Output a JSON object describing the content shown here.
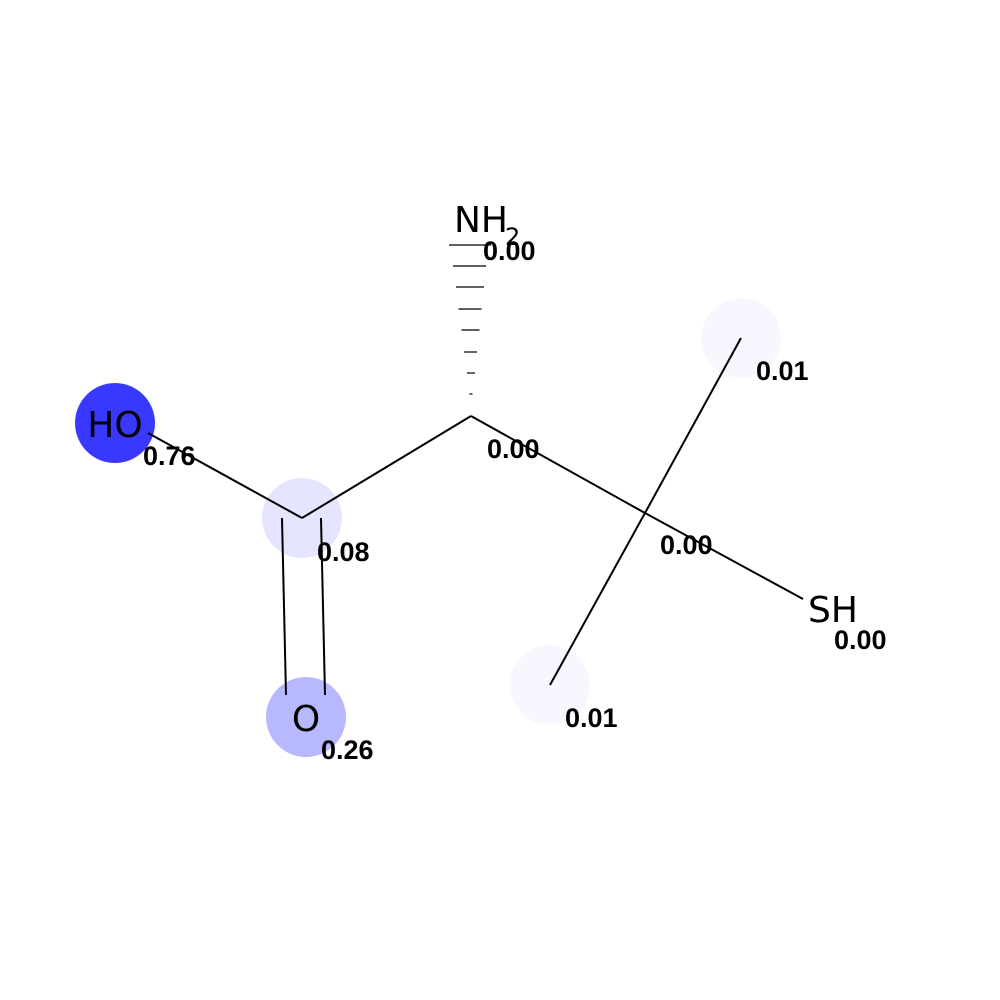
{
  "molecule": {
    "atoms": {
      "hydroxyl": {
        "label": "HO",
        "value": "0.76",
        "weight": 0.76,
        "color": "#0000ff"
      },
      "carboxyl_c": {
        "label": "",
        "value": "0.08",
        "weight": 0.08,
        "color": "#0000ff"
      },
      "carbonyl_o": {
        "label": "O",
        "value": "0.26",
        "weight": 0.26,
        "color": "#0000ff"
      },
      "alpha_c": {
        "label": "",
        "value": "0.00",
        "weight": 0.0,
        "color": "#0000ff"
      },
      "amine": {
        "label": "NH",
        "subscript": "2",
        "value": "0.00",
        "weight": 0.0,
        "color": "#0000ff"
      },
      "quat_c": {
        "label": "",
        "value": "0.00",
        "weight": 0.0,
        "color": "#0000ff"
      },
      "methyl_top": {
        "label": "",
        "value": "0.01",
        "weight": 0.01,
        "color": "#0000ff"
      },
      "methyl_bottom": {
        "label": "",
        "value": "0.01",
        "weight": 0.01,
        "color": "#0000ff"
      },
      "thiol": {
        "label": "SH",
        "value": "0.00",
        "weight": 0.0,
        "color": "#0000ff"
      }
    }
  }
}
